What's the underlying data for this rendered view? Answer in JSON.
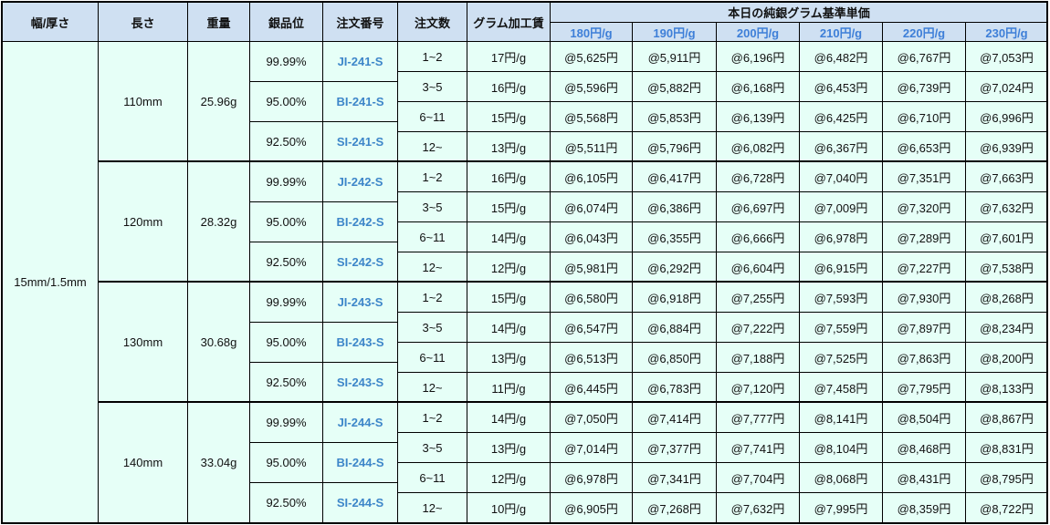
{
  "header": {
    "width_thickness": "幅/厚さ",
    "length": "長さ",
    "weight": "重量",
    "purity": "銀品位",
    "order_no": "注文番号",
    "qty": "注文数",
    "fee": "グラム加工賃",
    "base_price_title": "本日の純銀グラム基準単価",
    "base_prices": [
      "180円/g",
      "190円/g",
      "200円/g",
      "210円/g",
      "220円/g",
      "230円/g"
    ]
  },
  "width_thickness": "15mm/1.5mm",
  "groups": [
    {
      "length": "110mm",
      "weight": "25.96g",
      "orders": [
        {
          "purity": "99.99%",
          "code": "JI-241-S"
        },
        {
          "purity": "95.00%",
          "code": "BI-241-S"
        },
        {
          "purity": "92.50%",
          "code": "SI-241-S"
        }
      ],
      "rows": [
        {
          "qty": "1~2",
          "fee": "17円/g",
          "prices": [
            "@5,625円",
            "@5,911円",
            "@6,196円",
            "@6,482円",
            "@6,767円",
            "@7,053円"
          ]
        },
        {
          "qty": "3~5",
          "fee": "16円/g",
          "prices": [
            "@5,596円",
            "@5,882円",
            "@6,168円",
            "@6,453円",
            "@6,739円",
            "@7,024円"
          ]
        },
        {
          "qty": "6~11",
          "fee": "15円/g",
          "prices": [
            "@5,568円",
            "@5,853円",
            "@6,139円",
            "@6,425円",
            "@6,710円",
            "@6,996円"
          ]
        },
        {
          "qty": "12~",
          "fee": "13円/g",
          "prices": [
            "@5,511円",
            "@5,796円",
            "@6,082円",
            "@6,367円",
            "@6,653円",
            "@6,939円"
          ]
        }
      ]
    },
    {
      "length": "120mm",
      "weight": "28.32g",
      "orders": [
        {
          "purity": "99.99%",
          "code": "JI-242-S"
        },
        {
          "purity": "95.00%",
          "code": "BI-242-S"
        },
        {
          "purity": "92.50%",
          "code": "SI-242-S"
        }
      ],
      "rows": [
        {
          "qty": "1~2",
          "fee": "16円/g",
          "prices": [
            "@6,105円",
            "@6,417円",
            "@6,728円",
            "@7,040円",
            "@7,351円",
            "@7,663円"
          ]
        },
        {
          "qty": "3~5",
          "fee": "15円/g",
          "prices": [
            "@6,074円",
            "@6,386円",
            "@6,697円",
            "@7,009円",
            "@7,320円",
            "@7,632円"
          ]
        },
        {
          "qty": "6~11",
          "fee": "14円/g",
          "prices": [
            "@6,043円",
            "@6,355円",
            "@6,666円",
            "@6,978円",
            "@7,289円",
            "@7,601円"
          ]
        },
        {
          "qty": "12~",
          "fee": "12円/g",
          "prices": [
            "@5,981円",
            "@6,292円",
            "@6,604円",
            "@6,915円",
            "@7,227円",
            "@7,538円"
          ]
        }
      ]
    },
    {
      "length": "130mm",
      "weight": "30.68g",
      "orders": [
        {
          "purity": "99.99%",
          "code": "JI-243-S"
        },
        {
          "purity": "95.00%",
          "code": "BI-243-S"
        },
        {
          "purity": "92.50%",
          "code": "SI-243-S"
        }
      ],
      "rows": [
        {
          "qty": "1~2",
          "fee": "15円/g",
          "prices": [
            "@6,580円",
            "@6,918円",
            "@7,255円",
            "@7,593円",
            "@7,930円",
            "@8,268円"
          ]
        },
        {
          "qty": "3~5",
          "fee": "14円/g",
          "prices": [
            "@6,547円",
            "@6,884円",
            "@7,222円",
            "@7,559円",
            "@7,897円",
            "@8,234円"
          ]
        },
        {
          "qty": "6~11",
          "fee": "13円/g",
          "prices": [
            "@6,513円",
            "@6,850円",
            "@7,188円",
            "@7,525円",
            "@7,863円",
            "@8,200円"
          ]
        },
        {
          "qty": "12~",
          "fee": "11円/g",
          "prices": [
            "@6,445円",
            "@6,783円",
            "@7,120円",
            "@7,458円",
            "@7,795円",
            "@8,133円"
          ]
        }
      ]
    },
    {
      "length": "140mm",
      "weight": "33.04g",
      "orders": [
        {
          "purity": "99.99%",
          "code": "JI-244-S"
        },
        {
          "purity": "95.00%",
          "code": "BI-244-S"
        },
        {
          "purity": "92.50%",
          "code": "SI-244-S"
        }
      ],
      "rows": [
        {
          "qty": "1~2",
          "fee": "14円/g",
          "prices": [
            "@7,050円",
            "@7,414円",
            "@7,777円",
            "@8,141円",
            "@8,504円",
            "@8,867円"
          ]
        },
        {
          "qty": "3~5",
          "fee": "13円/g",
          "prices": [
            "@7,014円",
            "@7,377円",
            "@7,741円",
            "@8,104円",
            "@8,468円",
            "@8,831円"
          ]
        },
        {
          "qty": "6~11",
          "fee": "12円/g",
          "prices": [
            "@6,978円",
            "@7,341円",
            "@7,704円",
            "@8,068円",
            "@8,431円",
            "@8,795円"
          ]
        },
        {
          "qty": "12~",
          "fee": "10円/g",
          "prices": [
            "@6,905円",
            "@7,268円",
            "@7,632円",
            "@7,995円",
            "@8,359円",
            "@8,722円"
          ]
        }
      ]
    }
  ]
}
